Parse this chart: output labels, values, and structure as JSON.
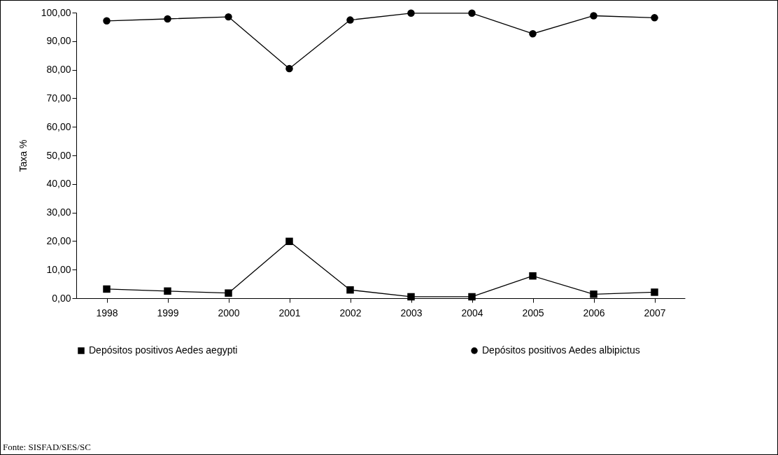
{
  "chart_data": {
    "type": "line",
    "categories": [
      "1998",
      "1999",
      "2000",
      "2001",
      "2002",
      "2003",
      "2004",
      "2005",
      "2006",
      "2007"
    ],
    "ylabel": "Taxa %",
    "ylim": [
      0,
      100
    ],
    "yticks": [
      {
        "value": 0,
        "label": "0,00"
      },
      {
        "value": 10,
        "label": "10,00"
      },
      {
        "value": 20,
        "label": "20,00"
      },
      {
        "value": 30,
        "label": "30,00"
      },
      {
        "value": 40,
        "label": "40,00"
      },
      {
        "value": 50,
        "label": "50,00"
      },
      {
        "value": 60,
        "label": "60,00"
      },
      {
        "value": 70,
        "label": "70,00"
      },
      {
        "value": 80,
        "label": "80,00"
      },
      {
        "value": 90,
        "label": "90,00"
      },
      {
        "value": 100,
        "label": "100,00"
      }
    ],
    "series": [
      {
        "name": "Depósitos positivos Aedes aegypti",
        "color": "#000000",
        "marker": "square",
        "values": [
          3.2,
          2.5,
          1.8,
          19.9,
          2.9,
          0.5,
          0.5,
          7.8,
          1.4,
          2.1
        ]
      },
      {
        "name": "Depósitos positivos Aedes albipictus",
        "color": "#000000",
        "marker": "circle",
        "values": [
          97.1,
          97.8,
          98.5,
          80.4,
          97.4,
          99.8,
          99.8,
          92.6,
          98.9,
          98.2
        ]
      }
    ],
    "legend": "bottom",
    "grid": false,
    "annotations": [
      "Fonte: SISFAD/SES/SC"
    ]
  }
}
